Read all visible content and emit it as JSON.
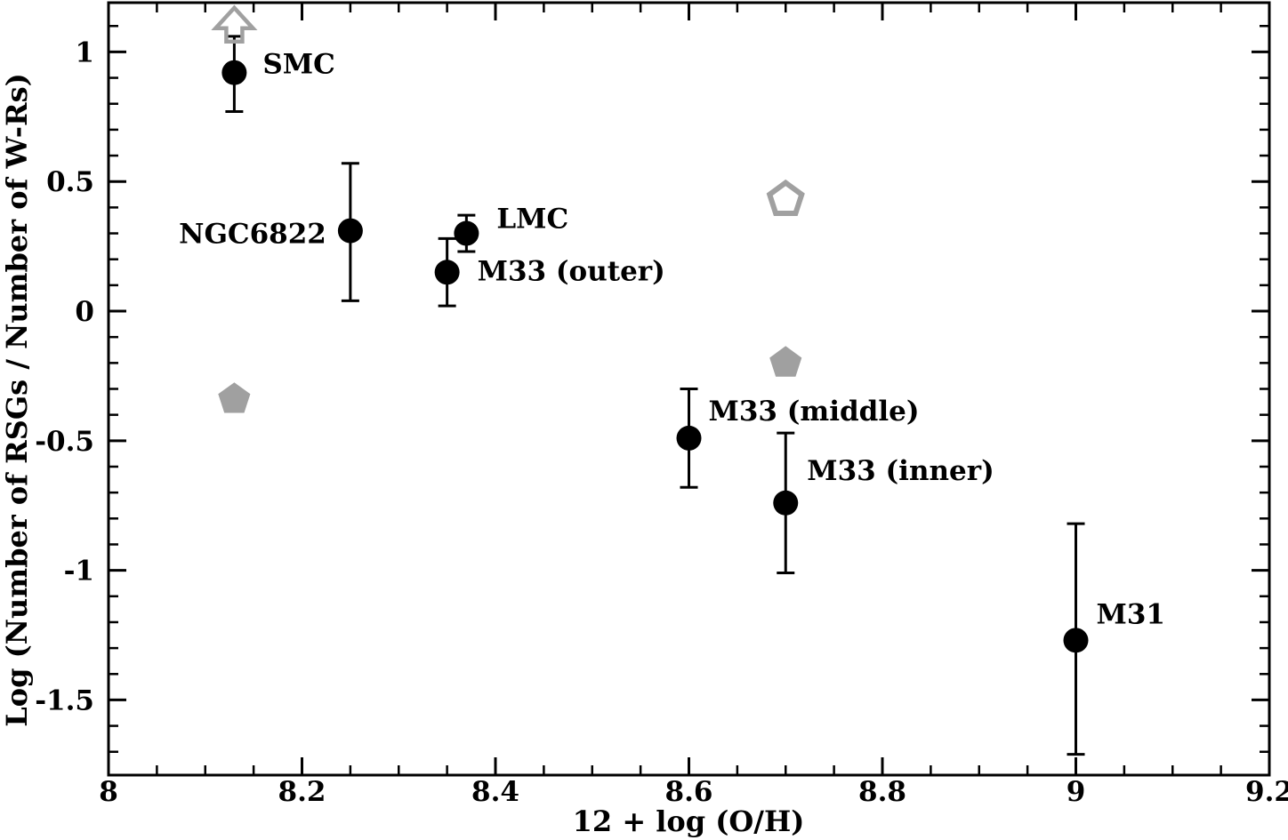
{
  "figure": {
    "background": "#ffffff",
    "axis_color": "#000000",
    "text_color": "#000000",
    "comparison_color": "#a0a0a0"
  },
  "chart_data": {
    "type": "scatter",
    "title": "",
    "xlabel": "12 + log (O/H)",
    "ylabel": "Log (Number of RSGs / Number of W-Rs)",
    "xlim": [
      8.0,
      9.2
    ],
    "ylim": [
      -1.79,
      1.19
    ],
    "grid": false,
    "legend": "none",
    "x_ticks": [
      {
        "v": 8.0,
        "label": "8"
      },
      {
        "v": 8.2,
        "label": "8.2"
      },
      {
        "v": 8.4,
        "label": "8.4"
      },
      {
        "v": 8.6,
        "label": "8.6"
      },
      {
        "v": 8.8,
        "label": "8.8"
      },
      {
        "v": 9.0,
        "label": "9"
      },
      {
        "v": 9.2,
        "label": "9.2"
      }
    ],
    "x_minor_step": 0.05,
    "y_ticks": [
      {
        "v": 1.0,
        "label": "1"
      },
      {
        "v": 0.5,
        "label": "0.5"
      },
      {
        "v": 0.0,
        "label": "0"
      },
      {
        "v": -0.5,
        "label": "-0.5"
      },
      {
        "v": -1.0,
        "label": "-1"
      },
      {
        "v": -1.5,
        "label": "-1.5"
      }
    ],
    "y_minor_step": 0.1,
    "series": [
      {
        "name": "galaxy-ratios",
        "marker": "filled-circle",
        "color": "#000000",
        "points": [
          {
            "label": "SMC",
            "x": 8.13,
            "y": 0.92,
            "err_lo": 0.77,
            "err_hi": 1.06,
            "lower_limit": true,
            "label_anchor": "start",
            "label_dx": 32,
            "label_dy": 1
          },
          {
            "label": "NGC6822",
            "x": 8.25,
            "y": 0.31,
            "err_lo": 0.04,
            "err_hi": 0.57,
            "lower_limit": false,
            "label_anchor": "end",
            "label_dx": -27,
            "label_dy": 14
          },
          {
            "label": "LMC",
            "x": 8.37,
            "y": 0.3,
            "err_lo": 0.23,
            "err_hi": 0.37,
            "lower_limit": false,
            "label_anchor": "start",
            "label_dx": 34,
            "label_dy": -6
          },
          {
            "label": "M33 (outer)",
            "x": 8.35,
            "y": 0.15,
            "err_lo": 0.02,
            "err_hi": 0.28,
            "lower_limit": false,
            "label_anchor": "start",
            "label_dx": 34,
            "label_dy": 9
          },
          {
            "label": "M33 (middle)",
            "x": 8.6,
            "y": -0.49,
            "err_lo": -0.68,
            "err_hi": -0.3,
            "lower_limit": false,
            "label_anchor": "start",
            "label_dx": 22,
            "label_dy": -20
          },
          {
            "label": "M33 (inner)",
            "x": 8.7,
            "y": -0.74,
            "err_lo": -1.01,
            "err_hi": -0.47,
            "lower_limit": false,
            "label_anchor": "start",
            "label_dx": 24,
            "label_dy": -26
          },
          {
            "label": "M31",
            "x": 9.0,
            "y": -1.27,
            "err_lo": -1.71,
            "err_hi": -0.82,
            "lower_limit": false,
            "label_anchor": "start",
            "label_dx": 23,
            "label_dy": -19
          }
        ]
      },
      {
        "name": "model-pentagons",
        "marker": "pentagon",
        "color": "#a0a0a0",
        "points": [
          {
            "x": 8.13,
            "y": -0.34,
            "style": "filled"
          },
          {
            "x": 8.7,
            "y": 0.43,
            "style": "open"
          },
          {
            "x": 8.7,
            "y": -0.2,
            "style": "filled"
          }
        ]
      }
    ],
    "annotations": [
      {
        "type": "lower-limit-arrow",
        "x": 8.13,
        "tip_y": 1.17,
        "tail_y": 1.04,
        "color": "#a0a0a0"
      }
    ]
  }
}
